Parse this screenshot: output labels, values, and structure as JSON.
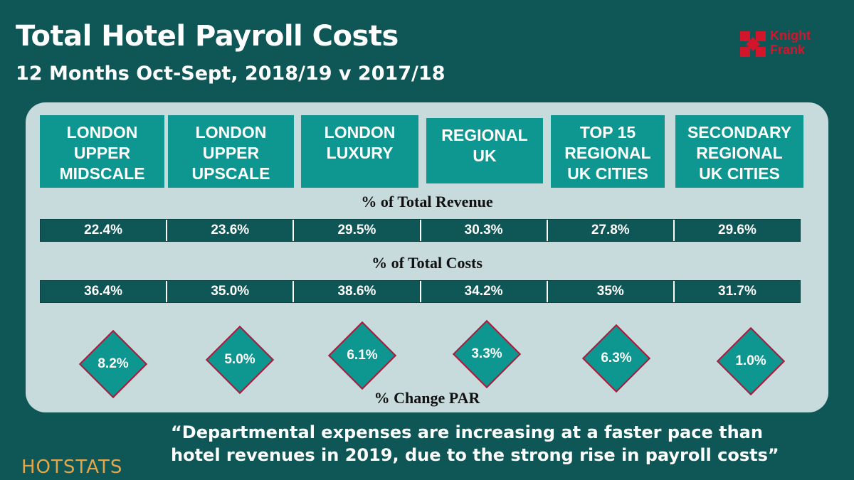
{
  "header": {
    "title": "Total Hotel Payroll Costs",
    "subtitle": "12 Months Oct-Sept, 2018/19 v 2017/18"
  },
  "logo": {
    "line1": "Knight",
    "line2": "Frank",
    "color": "#d3152c"
  },
  "categories": [
    {
      "line1": "LONDON",
      "line2": "UPPER",
      "line3": "MIDSCALE"
    },
    {
      "line1": "LONDON",
      "line2": "UPPER",
      "line3": "UPSCALE"
    },
    {
      "line1": "LONDON",
      "line2": "LUXURY",
      "line3": ""
    },
    {
      "line1": "REGIONAL",
      "line2": "UK",
      "line3": ""
    },
    {
      "line1": "TOP 15",
      "line2": "REGIONAL",
      "line3": "UK CITIES"
    },
    {
      "line1": "SECONDARY",
      "line2": "REGIONAL",
      "line3": "UK CITIES"
    }
  ],
  "revenue": {
    "label": "% of Total Revenue",
    "values": [
      "22.4%",
      "23.6%",
      "29.5%",
      "30.3%",
      "27.8%",
      "29.6%"
    ]
  },
  "costs": {
    "label": "% of Total Costs",
    "values": [
      "36.4%",
      "35.0%",
      "38.6%",
      "34.2%",
      "35%",
      "31.7%"
    ]
  },
  "par_change": {
    "label": "% Change PAR",
    "values": [
      "8.2%",
      "5.0%",
      "6.1%",
      "3.3%",
      "6.3%",
      "1.0%"
    ]
  },
  "quote": {
    "line1": "“Departmental expenses are increasing at a faster pace than",
    "line2": "hotel revenues in 2019, due to the strong rise in payroll costs”"
  },
  "footer_logo": "HOTSTATS",
  "colors": {
    "background": "#0f5656",
    "panel": "#c7dadc",
    "teal": "#0e9690",
    "diamond_border": "#b0193a",
    "hotstats": "#e3a64a"
  }
}
